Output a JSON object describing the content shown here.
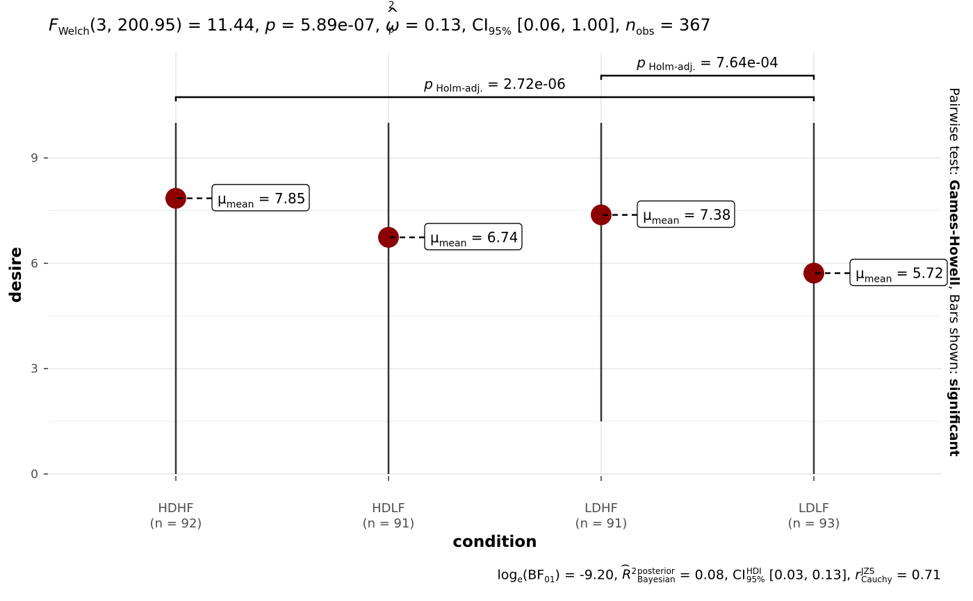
{
  "title": {
    "prefix": "F",
    "prefix_sub": "Welch",
    "df": "(3, 200.95)",
    "stat": " = 11.44, ",
    "p_label": "p",
    "p_value": " = 5.89e-07, ",
    "effect_symbol": "ω",
    "effect_sup": "2",
    "effect_sub": "p",
    "effect_value": " = 0.13, CI",
    "ci_sub": "95%",
    "ci_value": " [0.06, 1.00], ",
    "n_label": "n",
    "n_sub": "obs",
    "n_value": " = 367"
  },
  "caption": {
    "log": "log",
    "log_sub": "e",
    "bf": "(BF",
    "bf_sub": "01",
    "bf_value": ") = -9.20, ",
    "r2": "R",
    "r2_sup": "2",
    "r2_upper": "posterior",
    "r2_lower": "Bayesian",
    "r2_value": " = 0.08, CI",
    "ci_upper": "HDI",
    "ci_lower": "95%",
    "ci_value": " [0.03, 0.13], ",
    "r_label": "r",
    "r_upper": "JZS",
    "r_lower": "Cauchy",
    "r_value": " = 0.71"
  },
  "side_label": {
    "prefix": "Pairwise test: ",
    "test": "Games-Howell",
    "middle": ", Bars shown: ",
    "shown": "significant"
  },
  "colors": {
    "point": "#8B0000",
    "grid": "#EBEBEB",
    "bar": "#333333",
    "text": "#000000",
    "tick_text": "#4D4D4D"
  },
  "chart_data": {
    "type": "dot-with-range",
    "xlabel": "condition",
    "ylabel": "desire",
    "ylim": [
      0,
      10
    ],
    "yticks": [
      0,
      3,
      6,
      9
    ],
    "grid": true,
    "categories": [
      "HDHF",
      "HDLF",
      "LDHF",
      "LDLF"
    ],
    "sample_sizes": [
      "(n = 92)",
      "(n = 91)",
      "(n = 91)",
      "(n = 93)"
    ],
    "means": [
      7.85,
      6.74,
      7.38,
      5.72
    ],
    "range_min": [
      0,
      0,
      1.5,
      0
    ],
    "range_max": [
      10,
      10,
      10,
      10
    ],
    "mean_labels": [
      {
        "symbol": "μ",
        "sub": "mean",
        "text": " = 7.85"
      },
      {
        "symbol": "μ",
        "sub": "mean",
        "text": " = 6.74"
      },
      {
        "symbol": "μ",
        "sub": "mean",
        "text": " = 7.38"
      },
      {
        "symbol": "μ",
        "sub": "mean",
        "text": " = 5.72"
      }
    ],
    "comparisons": [
      {
        "from": 0,
        "to": 3,
        "label": "p",
        "label_sub": "Holm-adj.",
        "label_value": " = 2.72e-06"
      },
      {
        "from": 2,
        "to": 3,
        "label": "p",
        "label_sub": "Holm-adj.",
        "label_value": " = 7.64e-04"
      }
    ]
  }
}
